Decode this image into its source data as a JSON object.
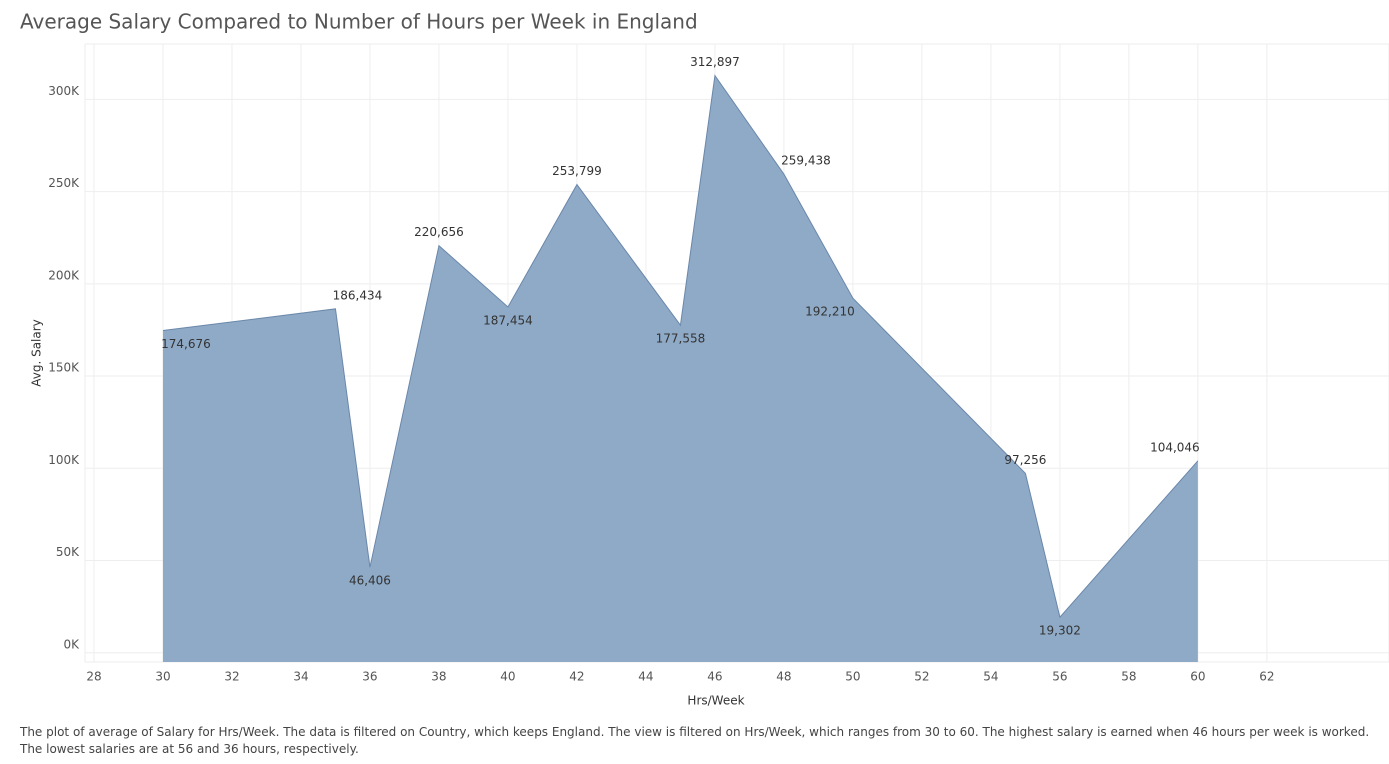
{
  "chart_data": {
    "type": "area",
    "title": "Average Salary Compared to Number of Hours per Week in England",
    "x_label": "Hrs/Week",
    "y_label": "Avg. Salary",
    "x": [
      30,
      35,
      36,
      38,
      40,
      42,
      45,
      46,
      48,
      50,
      55,
      56,
      60
    ],
    "values": [
      174676,
      186434,
      46406,
      220656,
      187454,
      253799,
      177558,
      312897,
      259438,
      192210,
      97256,
      19302,
      104046
    ],
    "value_labels": [
      "174,676",
      "186,434",
      "46,406",
      "220,656",
      "187,454",
      "253,799",
      "177,558",
      "312,897",
      "259,438",
      "192,210",
      "97,256",
      "19,302",
      "104,046"
    ],
    "color": "#8faac7",
    "line_color": "#6a87aa",
    "xlim": [
      27.74,
      65.54
    ],
    "xticks": [
      28,
      30,
      32,
      34,
      36,
      38,
      40,
      42,
      44,
      46,
      48,
      50,
      52,
      54,
      56,
      58,
      60,
      62
    ],
    "ylim": [
      -5000,
      330000
    ],
    "yticks": [
      {
        "value": 0,
        "label": "0K"
      },
      {
        "value": 50000,
        "label": "50K"
      },
      {
        "value": 100000,
        "label": "100K"
      },
      {
        "value": 150000,
        "label": "150K"
      },
      {
        "value": 200000,
        "label": "200K"
      },
      {
        "value": 250000,
        "label": "250K"
      },
      {
        "value": 300000,
        "label": "300K"
      }
    ],
    "grid": true,
    "caption": "The plot of average of Salary for Hrs/Week. The data is filtered on Country, which keeps  England. The view is filtered on Hrs/Week, which ranges from 30 to 60. The highest salary is earned when 46 hours per week is worked. The lowest salaries are at 56 and 36 hours, respectively."
  }
}
